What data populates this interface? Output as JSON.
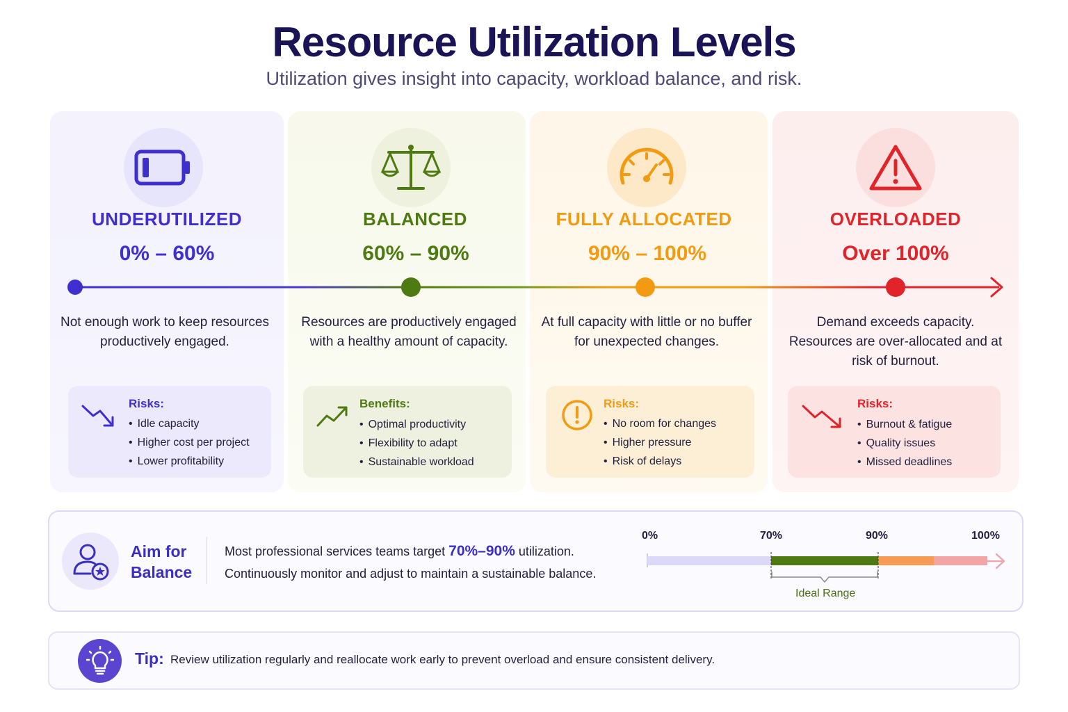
{
  "title": "Resource Utilization Levels",
  "subtitle": "Utilization gives insight into capacity, workload balance, and risk.",
  "colors": {
    "underutilized": "#3f2fd0",
    "balanced": "#4e7a12",
    "fully_allocated": "#f39b10",
    "overloaded": "#e0242a",
    "accent": "#3b2fc1"
  },
  "levels": [
    {
      "icon": "battery-low-icon",
      "heading": "UNDERUTILIZED",
      "range": "0% – 60%",
      "description": "Not enough work to keep resources productively engaged.",
      "box_icon": "trending-down-icon",
      "box_title": "Risks:",
      "items": [
        "Idle capacity",
        "Higher cost per project",
        "Lower profitability"
      ]
    },
    {
      "icon": "scale-icon",
      "heading": "BALANCED",
      "range": "60% – 90%",
      "description": "Resources are productively engaged with a healthy amount of capacity.",
      "box_icon": "trending-up-icon",
      "box_title": "Benefits:",
      "items": [
        "Optimal productivity",
        "Flexibility to adapt",
        "Sustainable workload"
      ]
    },
    {
      "icon": "gauge-icon",
      "heading": "FULLY ALLOCATED",
      "range": "90% – 100%",
      "description": "At full capacity with little or no buffer for unexpected changes.",
      "box_icon": "alert-circle-icon",
      "box_title": "Risks:",
      "items": [
        "No room for changes",
        "Higher pressure",
        "Risk of delays"
      ]
    },
    {
      "icon": "warning-triangle-icon",
      "heading": "OVERLOADED",
      "range": "Over 100%",
      "description": "Demand exceeds capacity. Resources are over-allocated and at risk of burnout.",
      "box_icon": "trending-down-icon",
      "box_title": "Risks:",
      "items": [
        "Burnout & fatigue",
        "Quality issues",
        "Missed deadlines"
      ]
    }
  ],
  "aim": {
    "icon": "user-star-icon",
    "label_line1": "Aim for",
    "label_line2": "Balance",
    "text_prefix": "Most professional services teams target ",
    "text_highlight": "70%–90%",
    "text_suffix": " utilization.",
    "text_line2": "Continuously monitor and adjust to maintain a sustainable balance.",
    "scale_labels": [
      "0%",
      "70%",
      "90%",
      "100%"
    ],
    "ideal_label": "Ideal Range",
    "ideal_range": [
      70,
      90
    ]
  },
  "tip": {
    "icon": "lightbulb-icon",
    "label": "Tip:",
    "text": "Review utilization regularly and reallocate work early to prevent overload and ensure consistent delivery."
  }
}
